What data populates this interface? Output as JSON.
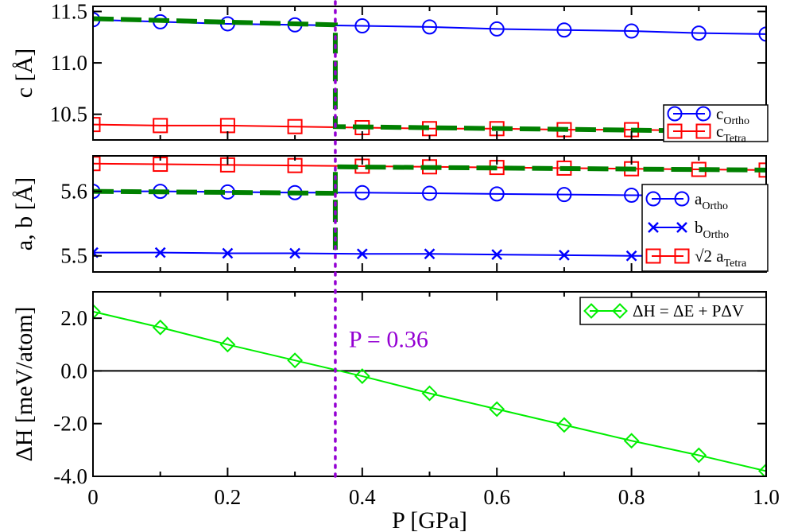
{
  "chart_data": [
    {
      "type": "line",
      "panel": "top",
      "ylabel": "c  [Å]",
      "xlim": [
        0,
        1.0
      ],
      "ylim": [
        10.25,
        11.55
      ],
      "yticks": [
        10.5,
        11.0,
        11.5
      ],
      "yticklabels": [
        "10.5",
        "11.0",
        "11.5"
      ],
      "legend": {
        "placement": "bottom-right"
      },
      "series": [
        {
          "name": "c_Ortho",
          "label": "c",
          "sub": "Ortho",
          "color": "#0000ff",
          "marker": "circle",
          "x": [
            0,
            0.1,
            0.2,
            0.3,
            0.4,
            0.5,
            0.6,
            0.7,
            0.8,
            0.9,
            1.0
          ],
          "y": [
            11.42,
            11.4,
            11.38,
            11.37,
            11.36,
            11.35,
            11.33,
            11.32,
            11.31,
            11.29,
            11.28
          ]
        },
        {
          "name": "c_Tetra",
          "label": "c",
          "sub": "Tetra",
          "color": "#ff0000",
          "marker": "square",
          "x": [
            0,
            0.1,
            0.2,
            0.3,
            0.4,
            0.5,
            0.6,
            0.7,
            0.8,
            0.9,
            1.0
          ],
          "y": [
            10.4,
            10.39,
            10.39,
            10.38,
            10.37,
            10.36,
            10.36,
            10.35,
            10.35,
            10.34,
            10.33
          ]
        }
      ],
      "stable_path": {
        "color": "#008000",
        "x": [
          0,
          0.36,
          0.36,
          1.0
        ],
        "y": [
          11.43,
          11.37,
          10.38,
          10.33
        ]
      }
    },
    {
      "type": "line",
      "panel": "middle",
      "ylabel": "a, b  [Å]",
      "xlim": [
        0,
        1.0
      ],
      "ylim": [
        5.475,
        5.655
      ],
      "yticks": [
        5.5,
        5.6
      ],
      "yticklabels": [
        "5.5",
        "5.6"
      ],
      "legend": {
        "placement": "bottom-right"
      },
      "series": [
        {
          "name": "a_Ortho",
          "label": "a",
          "sub": "Ortho",
          "color": "#0000ff",
          "marker": "circle",
          "x": [
            0,
            0.1,
            0.2,
            0.3,
            0.4,
            0.5,
            0.6,
            0.7,
            0.8,
            0.9,
            1.0
          ],
          "y": [
            5.6,
            5.6,
            5.599,
            5.598,
            5.598,
            5.597,
            5.596,
            5.595,
            5.594,
            5.594,
            5.593
          ]
        },
        {
          "name": "b_Ortho",
          "label": "b",
          "sub": "Ortho",
          "color": "#0000ff",
          "marker": "x",
          "x": [
            0,
            0.1,
            0.2,
            0.3,
            0.4,
            0.5,
            0.6,
            0.7,
            0.8,
            0.9,
            1.0
          ],
          "y": [
            5.505,
            5.505,
            5.504,
            5.504,
            5.503,
            5.503,
            5.502,
            5.501,
            5.5,
            5.5,
            5.499
          ]
        },
        {
          "name": "sqrt2_a_Tetra",
          "label": "√2 a",
          "sub": "Tetra",
          "color": "#ff0000",
          "marker": "square",
          "x": [
            0,
            0.1,
            0.2,
            0.3,
            0.4,
            0.5,
            0.6,
            0.7,
            0.8,
            0.9,
            1.0
          ],
          "y": [
            5.643,
            5.642,
            5.641,
            5.64,
            5.639,
            5.638,
            5.637,
            5.636,
            5.635,
            5.634,
            5.633
          ]
        }
      ],
      "stable_path": {
        "color": "#008000",
        "x": [
          0,
          0.36,
          0.36,
          0.36,
          0.36,
          1.0
        ],
        "y": [
          5.6,
          5.597,
          5.505,
          5.525,
          5.638,
          5.633
        ]
      }
    },
    {
      "type": "line",
      "panel": "bottom",
      "ylabel": "ΔH  [meV/atom]",
      "xlabel": "P  [GPa]",
      "xlim": [
        0,
        1.0
      ],
      "ylim": [
        -4.0,
        3.0
      ],
      "xticks": [
        0,
        0.2,
        0.4,
        0.6,
        0.8,
        1.0
      ],
      "xticklabels": [
        "0",
        "0.2",
        "0.4",
        "0.6",
        "0.8",
        "1.0"
      ],
      "yticks": [
        -4.0,
        -2.0,
        0.0,
        2.0
      ],
      "yticklabels": [
        "-4.0",
        "-2.0",
        "0.0",
        "2.0"
      ],
      "legend": {
        "placement": "top-right"
      },
      "series": [
        {
          "name": "dH",
          "label": "ΔH = ΔE + PΔV",
          "color": "#00ee00",
          "marker": "diamond",
          "x": [
            0,
            0.1,
            0.2,
            0.3,
            0.4,
            0.5,
            0.6,
            0.7,
            0.8,
            0.9,
            1.0
          ],
          "y": [
            2.25,
            1.65,
            1.0,
            0.4,
            -0.2,
            -0.85,
            -1.45,
            -2.05,
            -2.65,
            -3.2,
            -3.8
          ]
        }
      ],
      "zero_line": 0.0,
      "annotation": {
        "text": "P = 0.36",
        "color": "#9400d3",
        "x": 0.38,
        "y": 1.2
      }
    }
  ],
  "transition_line": {
    "x": 0.36,
    "color": "#9400d3"
  }
}
